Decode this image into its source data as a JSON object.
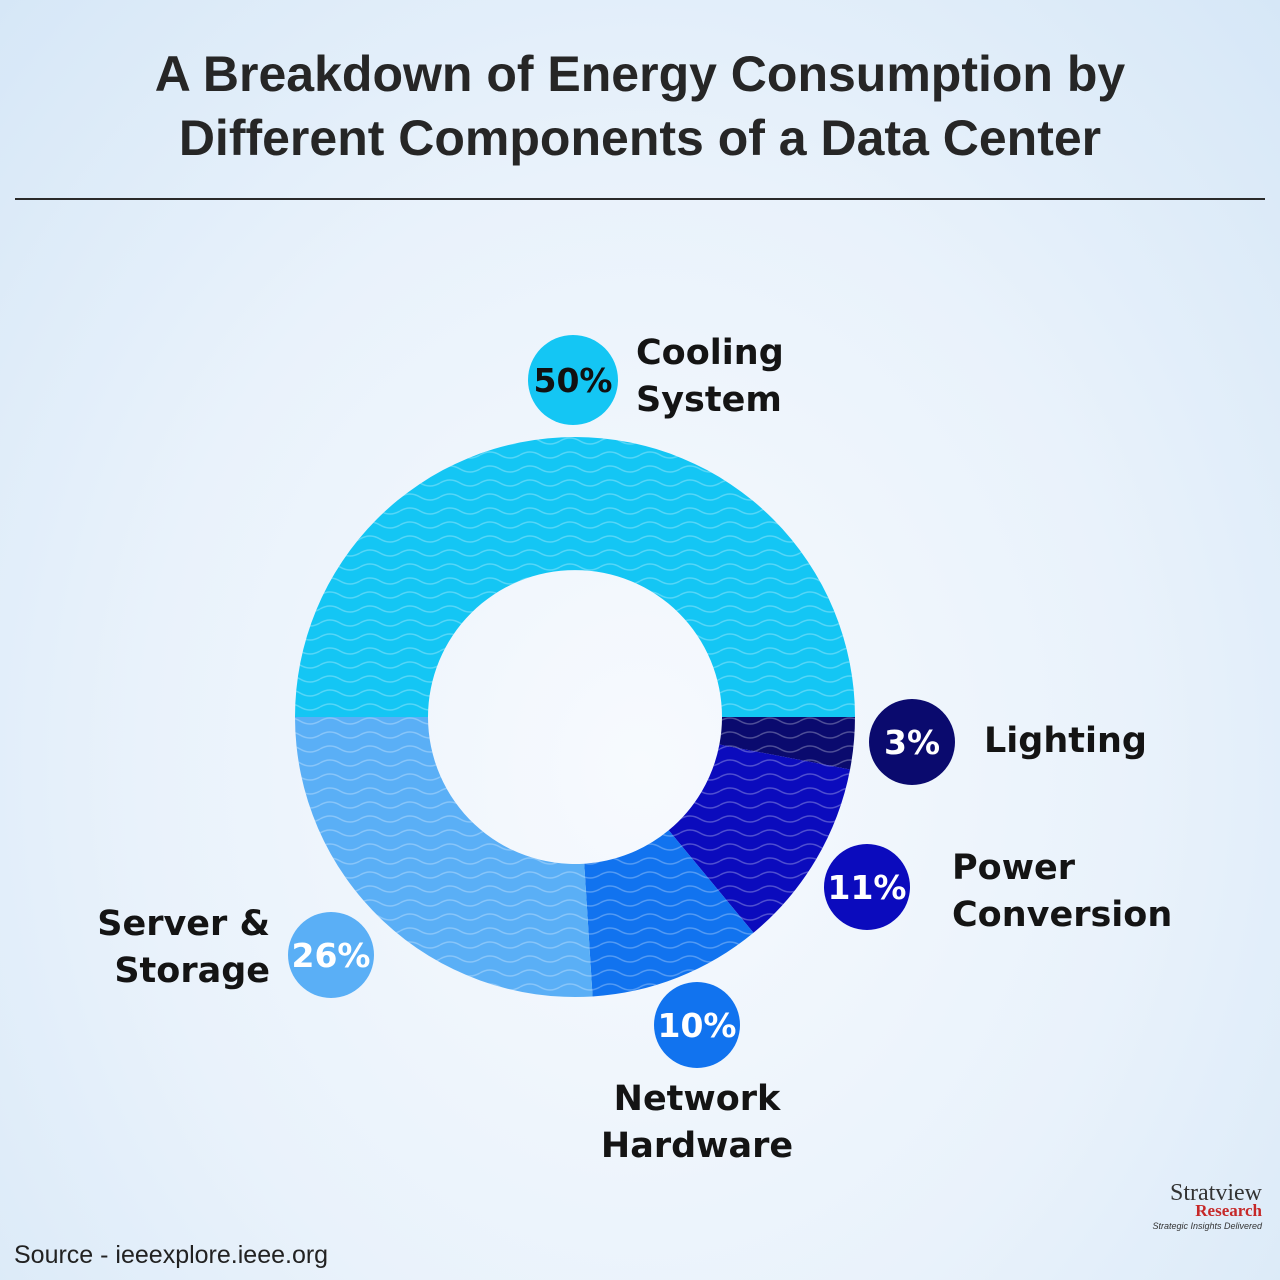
{
  "chart_data": {
    "type": "pie",
    "donut": true,
    "title": "A Breakdown of Energy Consumption by Different Components of a Data Center",
    "slices": [
      {
        "label": "Cooling System",
        "value": 50,
        "value_label": "50%",
        "color": "#14c6f4"
      },
      {
        "label": "Lighting",
        "value": 3,
        "value_label": "3%",
        "color": "#0a0a6e"
      },
      {
        "label": "Power Conversion",
        "value": 11,
        "value_label": "11%",
        "color": "#0b0bbd"
      },
      {
        "label": "Network Hardware",
        "value": 10,
        "value_label": "10%",
        "color": "#1173ef"
      },
      {
        "label": "Server & Storage",
        "value": 26,
        "value_label": "26%",
        "color": "#5aaff6"
      }
    ]
  },
  "title_line1": "A Breakdown of Energy Consumption by",
  "title_line2": "Different Components of a Data Center",
  "labels": {
    "cooling": [
      "Cooling",
      "System"
    ],
    "lighting": [
      "Lighting"
    ],
    "power": [
      "Power",
      "Conversion"
    ],
    "network": [
      "Network",
      "Hardware"
    ],
    "server": [
      "Server &",
      "Storage"
    ]
  },
  "source": "Source - ieeexplore.ieee.org",
  "logo": {
    "name": "Stratview",
    "sub": "Research",
    "tagline": "Strategic Insights Delivered"
  }
}
